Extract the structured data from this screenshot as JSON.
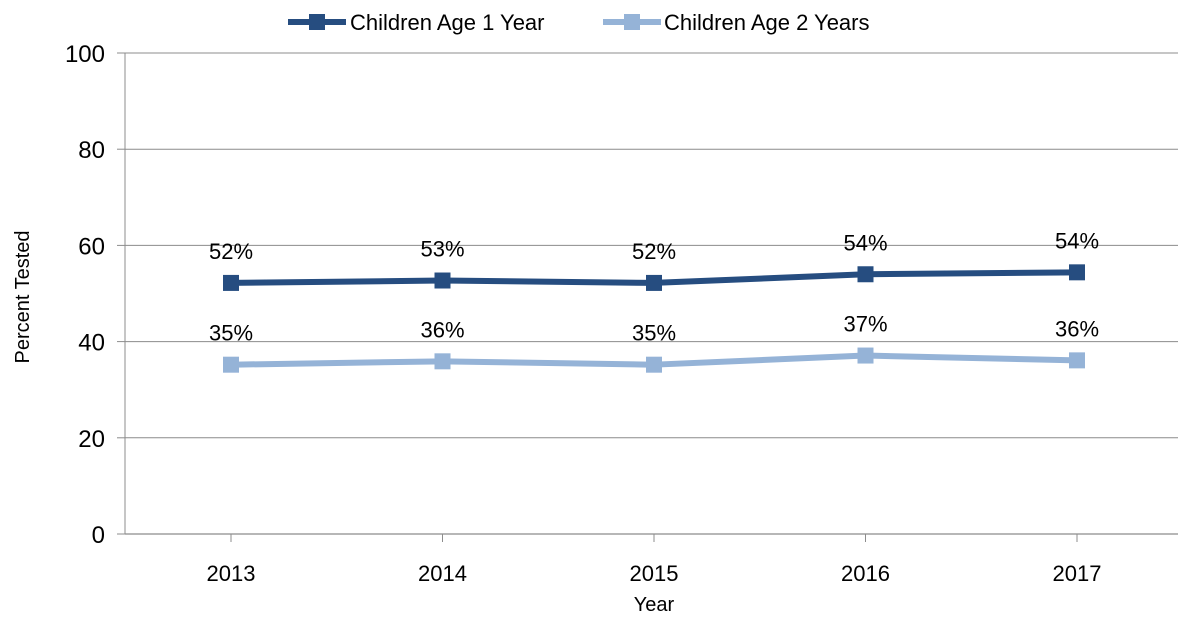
{
  "chart_data": {
    "type": "line",
    "title": "",
    "xlabel": "Year",
    "ylabel": "Percent Tested",
    "categories": [
      "2013",
      "2014",
      "2015",
      "2016",
      "2017"
    ],
    "ylim": [
      0,
      100
    ],
    "yticks": [
      0,
      20,
      40,
      60,
      80,
      100
    ],
    "grid": "horizontal",
    "legend_position": "top",
    "series": [
      {
        "name": "Children Age 1 Year",
        "color": "#264d80",
        "values": [
          52.2,
          52.7,
          52.2,
          54.0,
          54.4
        ],
        "labels": [
          "52%",
          "53%",
          "52%",
          "54%",
          "54%"
        ]
      },
      {
        "name": "Children Age 2 Years",
        "color": "#95b3d7",
        "values": [
          35.2,
          35.9,
          35.2,
          37.1,
          36.1
        ],
        "labels": [
          "35%",
          "36%",
          "35%",
          "37%",
          "36%"
        ]
      }
    ]
  }
}
